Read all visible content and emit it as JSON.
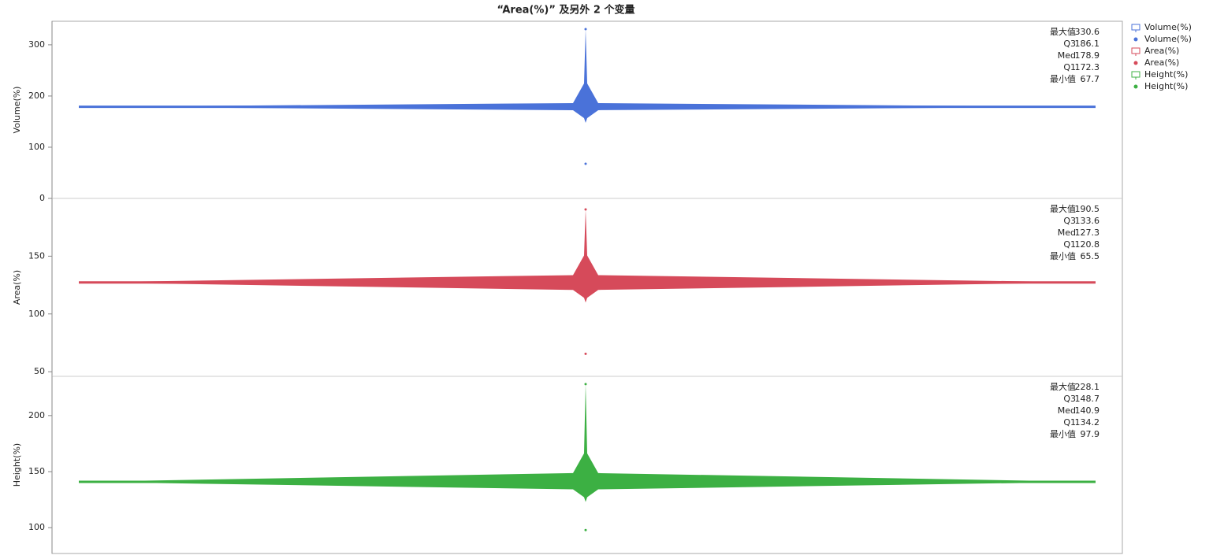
{
  "chart_data": {
    "type": "beeswarm",
    "title": "“Area(%)” 及另外 2 个变量",
    "legend": [
      {
        "name": "Volume(%)",
        "marker": "box",
        "color": "#4a72d9"
      },
      {
        "name": "Volume(%)",
        "marker": "dot",
        "color": "#4a72d9"
      },
      {
        "name": "Area(%)",
        "marker": "box",
        "color": "#d64a5a"
      },
      {
        "name": "Area(%)",
        "marker": "dot",
        "color": "#d64a5a"
      },
      {
        "name": "Height(%)",
        "marker": "box",
        "color": "#3cb043"
      },
      {
        "name": "Height(%)",
        "marker": "dot",
        "color": "#3cb043"
      }
    ],
    "panels": [
      {
        "ylabel": "Volume(%)",
        "color": "#4a72d9",
        "ylim": [
          0,
          346
        ],
        "yticks": [
          0,
          100,
          200,
          300
        ],
        "stats": [
          {
            "label": "最大值",
            "value": 330.6
          },
          {
            "label": "Q3",
            "value": 186.1
          },
          {
            "label": "Med",
            "value": 178.9
          },
          {
            "label": "Q1",
            "value": 172.3
          },
          {
            "label": "最小值",
            "value": 67.7
          }
        ]
      },
      {
        "ylabel": "Area(%)",
        "color": "#d64a5a",
        "ylim": [
          46,
          200
        ],
        "yticks": [
          50,
          100,
          150
        ],
        "stats": [
          {
            "label": "最大值",
            "value": 190.5
          },
          {
            "label": "Q3",
            "value": 133.6
          },
          {
            "label": "Med",
            "value": 127.3
          },
          {
            "label": "Q1",
            "value": 120.8
          },
          {
            "label": "最小值",
            "value": 65.5
          }
        ]
      },
      {
        "ylabel": "Height(%)",
        "color": "#3cb043",
        "ylim": [
          77,
          235
        ],
        "yticks": [
          100,
          150,
          200
        ],
        "stats": [
          {
            "label": "最大值",
            "value": 228.1
          },
          {
            "label": "Q3",
            "value": 148.7
          },
          {
            "label": "Med",
            "value": 140.9
          },
          {
            "label": "Q1",
            "value": 134.2
          },
          {
            "label": "最小值",
            "value": 97.9
          }
        ]
      }
    ]
  }
}
